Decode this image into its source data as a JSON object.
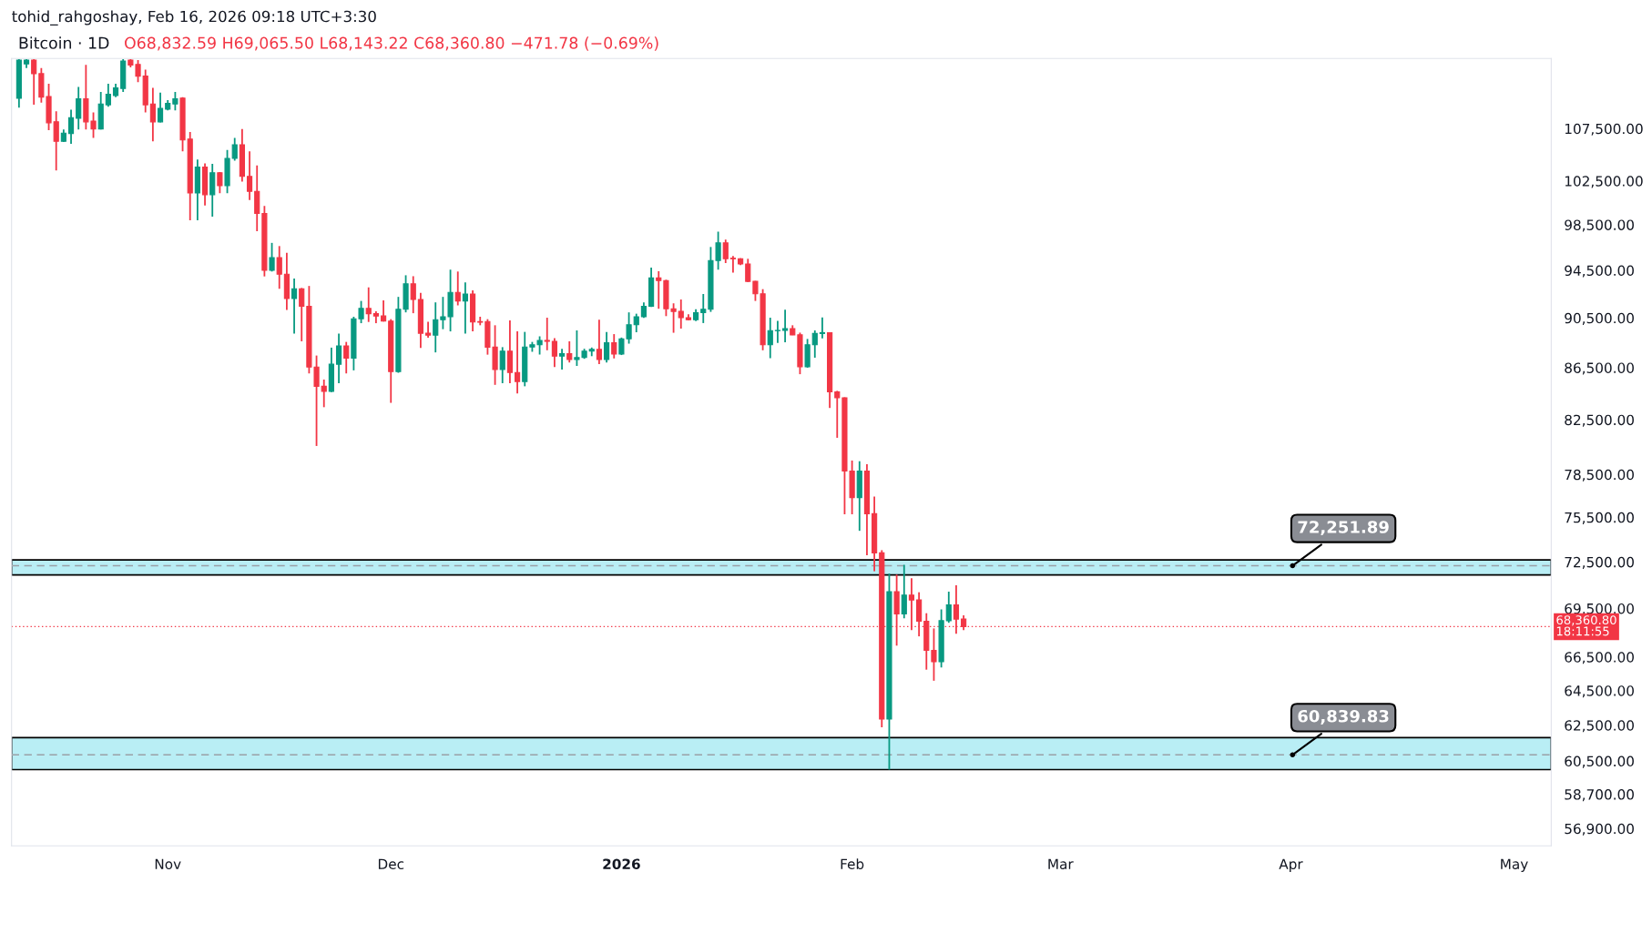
{
  "chart_data": {
    "type": "candlestick",
    "title": "tohid_rahgoshay, Feb 16, 2026 09:18 UTC+3:30",
    "subtitle": "Bitcoin · 1D",
    "annotations": [
      "O68,832.59 H69,065.50 L68,143.22 C68,360.80 −471.78 (−0.69%)"
    ],
    "x": [
      "2025-10-12",
      "2025-10-13",
      "2025-10-14",
      "2025-10-15",
      "2025-10-16",
      "2025-10-17",
      "2025-10-18",
      "2025-10-19",
      "2025-10-20",
      "2025-10-21",
      "2025-10-22",
      "2025-10-23",
      "2025-10-24",
      "2025-10-25",
      "2025-10-26",
      "2025-10-27",
      "2025-10-28",
      "2025-10-29",
      "2025-10-30",
      "2025-10-31",
      "2025-11-01",
      "2025-11-02",
      "2025-11-03",
      "2025-11-04",
      "2025-11-05",
      "2025-11-06",
      "2025-11-07",
      "2025-11-08",
      "2025-11-09",
      "2025-11-10",
      "2025-11-11",
      "2025-11-12",
      "2025-11-13",
      "2025-11-14",
      "2025-11-15",
      "2025-11-16",
      "2025-11-17",
      "2025-11-18",
      "2025-11-19",
      "2025-11-20",
      "2025-11-21",
      "2025-11-22",
      "2025-11-23",
      "2025-11-24",
      "2025-11-25",
      "2025-11-26",
      "2025-11-27",
      "2025-11-28",
      "2025-11-29",
      "2025-11-30",
      "2025-12-01",
      "2025-12-02",
      "2025-12-03",
      "2025-12-04",
      "2025-12-05",
      "2025-12-06",
      "2025-12-07",
      "2025-12-08",
      "2025-12-09",
      "2025-12-10",
      "2025-12-11",
      "2025-12-12",
      "2025-12-13",
      "2025-12-14",
      "2025-12-15",
      "2025-12-16",
      "2025-12-17",
      "2025-12-18",
      "2025-12-19",
      "2025-12-20",
      "2025-12-21",
      "2025-12-22",
      "2025-12-23",
      "2025-12-24",
      "2025-12-25",
      "2025-12-26",
      "2025-12-27",
      "2025-12-28",
      "2025-12-29",
      "2025-12-30",
      "2025-12-31",
      "2026-01-01",
      "2026-01-02",
      "2026-01-03",
      "2026-01-04",
      "2026-01-05",
      "2026-01-06",
      "2026-01-07",
      "2026-01-08",
      "2026-01-09",
      "2026-01-10",
      "2026-01-11",
      "2026-01-12",
      "2026-01-13",
      "2026-01-14",
      "2026-01-15",
      "2026-01-16",
      "2026-01-17",
      "2026-01-18",
      "2026-01-19",
      "2026-01-20",
      "2026-01-21",
      "2026-01-22",
      "2026-01-23",
      "2026-01-24",
      "2026-01-25",
      "2026-01-26",
      "2026-01-27",
      "2026-01-28",
      "2026-01-29",
      "2026-01-30",
      "2026-01-31",
      "2026-02-01",
      "2026-02-02",
      "2026-02-03",
      "2026-02-04",
      "2026-02-05",
      "2026-02-06",
      "2026-02-07",
      "2026-02-08",
      "2026-02-09",
      "2026-02-10",
      "2026-02-11",
      "2026-02-12",
      "2026-02-13",
      "2026-02-14",
      "2026-02-15",
      "2026-02-16"
    ],
    "ohlc": [
      [
        110500,
        114500,
        109570,
        114400
      ],
      [
        114000,
        114500,
        113580,
        114400
      ],
      [
        114400,
        114500,
        109850,
        113000
      ],
      [
        113000,
        113580,
        110070,
        110620
      ],
      [
        110670,
        111960,
        107340,
        108070
      ],
      [
        108160,
        109200,
        103490,
        106260
      ],
      [
        106260,
        107400,
        106200,
        107060
      ],
      [
        107020,
        109350,
        106020,
        108570
      ],
      [
        108510,
        111650,
        107400,
        110450
      ],
      [
        110450,
        113900,
        107400,
        108160
      ],
      [
        108240,
        109090,
        106590,
        107460
      ],
      [
        107460,
        111130,
        107400,
        109930
      ],
      [
        109850,
        111960,
        109650,
        110900
      ],
      [
        110780,
        111960,
        110620,
        111550
      ],
      [
        111490,
        114500,
        111130,
        114300
      ],
      [
        114400,
        114500,
        113650,
        113900
      ],
      [
        113960,
        114400,
        112120,
        112750
      ],
      [
        112750,
        113410,
        109090,
        109850
      ],
      [
        109930,
        111550,
        106260,
        108160
      ],
      [
        108160,
        111070,
        108100,
        109500
      ],
      [
        109400,
        110310,
        109290,
        109990
      ],
      [
        109930,
        111130,
        109290,
        110450
      ],
      [
        110510,
        110620,
        105290,
        106390
      ],
      [
        106480,
        107170,
        98910,
        101390
      ],
      [
        101390,
        104520,
        98910,
        103810
      ],
      [
        103810,
        104160,
        100250,
        101230
      ],
      [
        101230,
        104100,
        99230,
        103260
      ],
      [
        103260,
        103340,
        101360,
        102070
      ],
      [
        102070,
        105420,
        101360,
        104630
      ],
      [
        104630,
        106590,
        104400,
        105920
      ],
      [
        105920,
        107460,
        102430,
        102930
      ],
      [
        102930,
        105290,
        100730,
        101530
      ],
      [
        101530,
        103960,
        97930,
        99520
      ],
      [
        99520,
        100200,
        93980,
        94500
      ],
      [
        94500,
        96890,
        94400,
        95590
      ],
      [
        95590,
        96610,
        92930,
        94170
      ],
      [
        94170,
        96020,
        91160,
        92110
      ],
      [
        92110,
        93800,
        89230,
        92930
      ],
      [
        92930,
        93000,
        88600,
        91460
      ],
      [
        91460,
        93170,
        86050,
        86550
      ],
      [
        86550,
        87460,
        80560,
        85050
      ],
      [
        85050,
        85570,
        83450,
        84660
      ],
      [
        84660,
        88090,
        84600,
        86770
      ],
      [
        86770,
        89230,
        85290,
        88230
      ],
      [
        88230,
        88550,
        86050,
        87250
      ],
      [
        87250,
        90600,
        86290,
        90430
      ],
      [
        90430,
        91910,
        90070,
        91290
      ],
      [
        91290,
        93050,
        90170,
        90850
      ],
      [
        90850,
        91050,
        90070,
        90660
      ],
      [
        90660,
        91960,
        90200,
        90240
      ],
      [
        90240,
        90400,
        83780,
        86190
      ],
      [
        86190,
        92250,
        86100,
        91220
      ],
      [
        91220,
        94080,
        90960,
        93350
      ],
      [
        93350,
        94000,
        90890,
        92030
      ],
      [
        92030,
        92590,
        88060,
        89250
      ],
      [
        89250,
        90190,
        88890,
        89100
      ],
      [
        89100,
        91790,
        87710,
        90350
      ],
      [
        90350,
        92250,
        89580,
        90600
      ],
      [
        90600,
        94560,
        89400,
        92620
      ],
      [
        92620,
        94400,
        91540,
        91910
      ],
      [
        91910,
        93480,
        89230,
        92490
      ],
      [
        92490,
        92800,
        89400,
        90170
      ],
      [
        90200,
        90600,
        89900,
        90150
      ],
      [
        90200,
        90400,
        87530,
        88130
      ],
      [
        88130,
        89900,
        85160,
        86360
      ],
      [
        86360,
        88130,
        85290,
        87810
      ],
      [
        87810,
        90300,
        85290,
        86120
      ],
      [
        86120,
        89400,
        84500,
        85420
      ],
      [
        85420,
        89360,
        85050,
        88140
      ],
      [
        88140,
        88550,
        87760,
        88320
      ],
      [
        88320,
        89000,
        87540,
        88670
      ],
      [
        88670,
        90520,
        87880,
        88600
      ],
      [
        88600,
        88850,
        86550,
        87410
      ],
      [
        87410,
        88000,
        86360,
        87600
      ],
      [
        87600,
        88600,
        86910,
        87140
      ],
      [
        87140,
        89480,
        86640,
        87300
      ],
      [
        87300,
        88000,
        87200,
        87810
      ],
      [
        87810,
        88100,
        87410,
        87950
      ],
      [
        87950,
        90350,
        86790,
        87140
      ],
      [
        87140,
        89360,
        86900,
        88480
      ],
      [
        88480,
        89180,
        87230,
        87580
      ],
      [
        87580,
        88900,
        87500,
        88800
      ],
      [
        88800,
        90960,
        88410,
        89940
      ],
      [
        89940,
        90850,
        89330,
        90600
      ],
      [
        90600,
        91790,
        90500,
        91460
      ],
      [
        91460,
        94740,
        91400,
        93850
      ],
      [
        93850,
        94430,
        91260,
        93630
      ],
      [
        93630,
        93700,
        90650,
        91260
      ],
      [
        91260,
        91710,
        89290,
        91040
      ],
      [
        91040,
        92030,
        89630,
        90520
      ],
      [
        90520,
        90800,
        90300,
        90350
      ],
      [
        90350,
        91220,
        90240,
        90940
      ],
      [
        90940,
        92490,
        90080,
        91220
      ],
      [
        91220,
        96530,
        91000,
        95350
      ],
      [
        95350,
        97890,
        94560,
        96890
      ],
      [
        96890,
        97180,
        95130,
        95500
      ],
      [
        95550,
        95750,
        94300,
        95500
      ],
      [
        95500,
        95550,
        94950,
        95050
      ],
      [
        95050,
        95500,
        93500,
        93560
      ],
      [
        93560,
        93600,
        91910,
        92510
      ],
      [
        92510,
        92900,
        87880,
        88320
      ],
      [
        88320,
        90520,
        87250,
        89460
      ],
      [
        89460,
        90270,
        88470,
        89480
      ],
      [
        89480,
        91180,
        88520,
        89620
      ],
      [
        89620,
        89900,
        89100,
        89120
      ],
      [
        89120,
        89300,
        85990,
        86580
      ],
      [
        86580,
        88790,
        86500,
        88320
      ],
      [
        88320,
        89480,
        87290,
        89230
      ],
      [
        89230,
        90540,
        88840,
        89300
      ],
      [
        89300,
        89300,
        83390,
        84620
      ],
      [
        84620,
        84700,
        81160,
        84170
      ],
      [
        84170,
        84200,
        75710,
        78740
      ],
      [
        78740,
        79500,
        75710,
        76870
      ],
      [
        76870,
        79450,
        74580,
        78740
      ],
      [
        78740,
        79240,
        72950,
        75750
      ],
      [
        75750,
        76940,
        71890,
        73100
      ],
      [
        73100,
        73280,
        62390,
        62850
      ],
      [
        62850,
        71740,
        60030,
        70570
      ],
      [
        70570,
        71670,
        67190,
        69160
      ],
      [
        69160,
        72310,
        68880,
        70350
      ],
      [
        70350,
        71430,
        68150,
        70040
      ],
      [
        70040,
        70530,
        67760,
        68700
      ],
      [
        68700,
        69200,
        65740,
        66900
      ],
      [
        66900,
        68250,
        65080,
        66210
      ],
      [
        66210,
        69440,
        65870,
        68730
      ],
      [
        68730,
        70570,
        68600,
        69720
      ],
      [
        69720,
        70980,
        67920,
        68830
      ],
      [
        68832.59,
        69065.5,
        68143.22,
        68360.8
      ]
    ],
    "colors": [
      "#089981",
      "#089981",
      "#f23645",
      "#f23645",
      "#f23645",
      "#f23645",
      "#089981",
      "#089981",
      "#089981",
      "#f23645",
      "#f23645",
      "#089981",
      "#089981",
      "#089981",
      "#089981",
      "#f23645",
      "#f23645",
      "#f23645",
      "#f23645",
      "#089981",
      "#089981",
      "#089981",
      "#f23645",
      "#f23645",
      "#089981",
      "#f23645",
      "#089981",
      "#f23645",
      "#089981",
      "#089981",
      "#f23645",
      "#f23645",
      "#f23645",
      "#f23645",
      "#089981",
      "#f23645",
      "#f23645",
      "#089981",
      "#f23645",
      "#f23645",
      "#f23645",
      "#f23645",
      "#089981",
      "#089981",
      "#f23645",
      "#089981",
      "#089981",
      "#f23645",
      "#f23645",
      "#f23645",
      "#f23645",
      "#089981",
      "#089981",
      "#f23645",
      "#f23645",
      "#f23645",
      "#089981",
      "#089981",
      "#089981",
      "#f23645",
      "#089981",
      "#f23645",
      "#f23645",
      "#f23645",
      "#f23645",
      "#089981",
      "#f23645",
      "#f23645",
      "#089981",
      "#089981",
      "#089981",
      "#f23645",
      "#f23645",
      "#089981",
      "#f23645",
      "#089981",
      "#089981",
      "#089981",
      "#f23645",
      "#089981",
      "#f23645",
      "#089981",
      "#089981",
      "#089981",
      "#089981",
      "#089981",
      "#f23645",
      "#f23645",
      "#f23645",
      "#f23645",
      "#f23645",
      "#089981",
      "#089981",
      "#089981",
      "#089981",
      "#f23645",
      "#f23645",
      "#f23645",
      "#f23645",
      "#f23645",
      "#f23645",
      "#089981",
      "#089981",
      "#089981",
      "#f23645",
      "#f23645",
      "#089981",
      "#089981",
      "#089981",
      "#f23645",
      "#f23645",
      "#f23645",
      "#f23645",
      "#089981",
      "#f23645",
      "#f23645",
      "#f23645",
      "#089981",
      "#f23645",
      "#089981",
      "#f23645",
      "#f23645",
      "#f23645",
      "#f23645",
      "#089981",
      "#089981",
      "#f23645",
      "#f23645"
    ],
    "log": true,
    "grid": false,
    "legend": false,
    "xlim": [
      "2025-10-11",
      "2026-05-06"
    ],
    "xticks": [
      {
        "value": "2025-11-01",
        "label": "Nov"
      },
      {
        "value": "2025-12-01",
        "label": "Dec"
      },
      {
        "value": "2026-01-01",
        "label": "2026"
      },
      {
        "value": "2026-02-01",
        "label": "Feb"
      },
      {
        "value": "2026-03-01",
        "label": "Mar"
      },
      {
        "value": "2026-04-01",
        "label": "Apr"
      },
      {
        "value": "2026-05-01",
        "label": "May"
      }
    ],
    "ylim": [
      56010,
      114570
    ],
    "yticks": [
      {
        "value": 56900,
        "label": "56,900.00"
      },
      {
        "value": 58700,
        "label": "58,700.00"
      },
      {
        "value": 60500,
        "label": "60,500.00"
      },
      {
        "value": 62500,
        "label": "62,500.00"
      },
      {
        "value": 64500,
        "label": "64,500.00"
      },
      {
        "value": 66500,
        "label": "66,500.00"
      },
      {
        "value": 69500,
        "label": "69,500.00"
      },
      {
        "value": 72500,
        "label": "72,500.00"
      },
      {
        "value": 75500,
        "label": "75,500.00"
      },
      {
        "value": 78500,
        "label": "78,500.00"
      },
      {
        "value": 82500,
        "label": "82,500.00"
      },
      {
        "value": 86500,
        "label": "86,500.00"
      },
      {
        "value": 90500,
        "label": "90,500.00"
      },
      {
        "value": 94500,
        "label": "94,500.00"
      },
      {
        "value": 98500,
        "label": "98,500.00"
      },
      {
        "value": 102500,
        "label": "102,500.00"
      },
      {
        "value": 107500,
        "label": "107,500.00"
      }
    ],
    "bands": [
      {
        "axis": "y",
        "from": 71650,
        "to": 72630,
        "color": "#b9eef5"
      },
      {
        "axis": "y",
        "from": 60030,
        "to": 61800,
        "color": "#b9eef5"
      }
    ],
    "ref_lines": [
      {
        "axis": "y",
        "value": 72251.89,
        "label": "72,251.89",
        "color": "#9aa0a6",
        "line_style": "dashed"
      },
      {
        "axis": "y",
        "value": 60839.83,
        "label": "60,839.83",
        "color": "#9aa0a6",
        "line_style": "dashed"
      },
      {
        "axis": "y",
        "value": 68360.8,
        "label": "68,360.80\n18:11:55",
        "color": "#f23645",
        "line_style": "dotted"
      }
    ]
  }
}
